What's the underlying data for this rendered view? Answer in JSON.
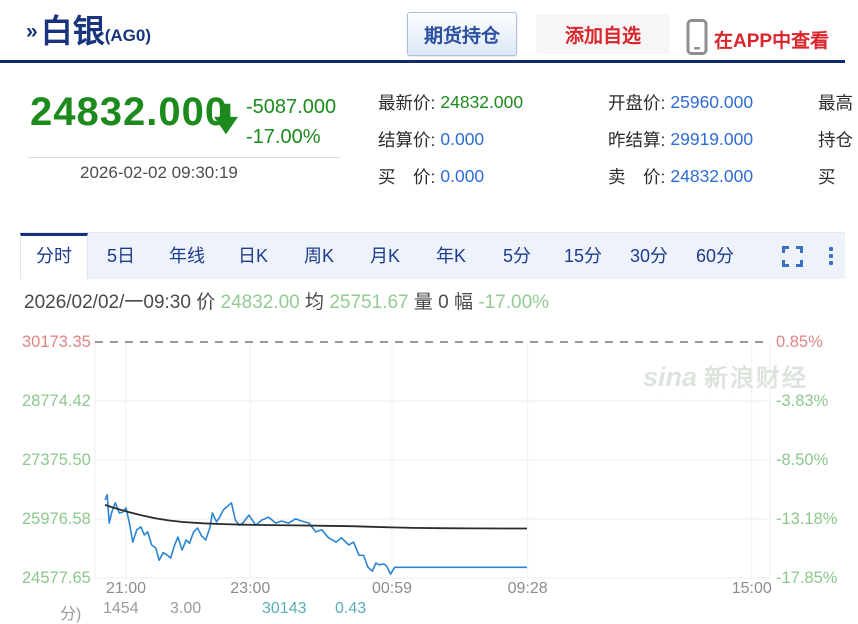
{
  "header": {
    "title": "白银",
    "symbol": "(AG0)",
    "positions_button": "期货持仓",
    "add_watchlist": "添加自选",
    "view_in_app": "在APP中查看"
  },
  "quote": {
    "price": "24832.000",
    "change": "-5087.000",
    "change_pct": "-17.00%",
    "timestamp": "2026-02-02 09:30:19",
    "columns": [
      [
        {
          "label": "最新价:",
          "value": "24832.000",
          "color": "green"
        },
        {
          "label": "结算价:",
          "value": "0.000",
          "color": "blue"
        },
        {
          "label": "买　价:",
          "value": "0.000",
          "color": "blue"
        }
      ],
      [
        {
          "label": "开盘价:",
          "value": "25960.000",
          "color": "blue"
        },
        {
          "label": "昨结算:",
          "value": "29919.000",
          "color": "blue"
        },
        {
          "label": "卖　价:",
          "value": "24832.000",
          "color": "blue"
        }
      ],
      [
        {
          "label": "最高",
          "value": "",
          "color": "blue"
        },
        {
          "label": "持仓",
          "value": "",
          "color": "blue"
        },
        {
          "label": "买",
          "value": "",
          "color": "blue"
        }
      ]
    ]
  },
  "tabs": {
    "items": [
      "分时",
      "5日",
      "年线",
      "日K",
      "周K",
      "月K",
      "年K",
      "5分",
      "15分",
      "30分",
      "60分"
    ],
    "active_index": 0
  },
  "info_line": {
    "datetime": "2026/02/02/一09:30",
    "price_label": "价",
    "price": "24832.00",
    "avg_label": "均",
    "avg": "25751.67",
    "vol_label": "量",
    "vol": "0",
    "range_label": "幅",
    "range": "-17.00%"
  },
  "watermark": {
    "brand": "sina",
    "name": "新浪财经"
  },
  "theme": {
    "navy": "#17347d",
    "down_green": "#1c8a1c",
    "link_blue": "#2e6cd6",
    "alert_red": "#d9262c",
    "chart_line_blue": "#2a85d2",
    "chart_avg_black": "#2b2b2b",
    "axis_green": "#8cc88c",
    "axis_red": "#e08484"
  },
  "chart_data": {
    "type": "line",
    "ylim": [
      24577.65,
      30173.35
    ],
    "grid": true,
    "last_price": 24832.0,
    "average_price": 25751.67,
    "change_pct": "-17.00%",
    "y_ticks": [
      {
        "value": 30173.35,
        "label": "30173.35",
        "pct_label": "0.85%",
        "tone": "up",
        "dashed": true
      },
      {
        "value": 28774.42,
        "label": "28774.42",
        "pct_label": "-3.83%",
        "tone": "down",
        "dashed": false
      },
      {
        "value": 27375.5,
        "label": "27375.50",
        "pct_label": "-8.50%",
        "tone": "down",
        "dashed": false
      },
      {
        "value": 25976.58,
        "label": "25976.58",
        "pct_label": "-13.18%",
        "tone": "down",
        "dashed": false
      },
      {
        "value": 24577.65,
        "label": "24577.65",
        "pct_label": "-17.85%",
        "tone": "down",
        "dashed": false
      }
    ],
    "x_ticks": [
      {
        "label": "21:00",
        "pos": 0.046
      },
      {
        "label": "23:00",
        "pos": 0.23
      },
      {
        "label": "00:59",
        "pos": 0.44
      },
      {
        "label": "09:28",
        "pos": 0.641
      },
      {
        "label": "15:00",
        "pos": 0.973
      }
    ],
    "series": [
      {
        "name": "price",
        "color": "#2a85d2",
        "width": 1.6,
        "points": [
          [
            0.015,
            26430
          ],
          [
            0.018,
            26550
          ],
          [
            0.021,
            25880
          ],
          [
            0.025,
            26150
          ],
          [
            0.03,
            26360
          ],
          [
            0.036,
            26120
          ],
          [
            0.041,
            26140
          ],
          [
            0.046,
            26240
          ],
          [
            0.051,
            25880
          ],
          [
            0.056,
            25430
          ],
          [
            0.062,
            25720
          ],
          [
            0.068,
            25790
          ],
          [
            0.073,
            25600
          ],
          [
            0.078,
            25670
          ],
          [
            0.084,
            25360
          ],
          [
            0.09,
            25290
          ],
          [
            0.095,
            25000
          ],
          [
            0.101,
            25180
          ],
          [
            0.107,
            25120
          ],
          [
            0.112,
            25050
          ],
          [
            0.118,
            25360
          ],
          [
            0.123,
            25550
          ],
          [
            0.129,
            25240
          ],
          [
            0.135,
            25480
          ],
          [
            0.14,
            25400
          ],
          [
            0.146,
            25670
          ],
          [
            0.152,
            25760
          ],
          [
            0.158,
            25570
          ],
          [
            0.164,
            25480
          ],
          [
            0.17,
            25760
          ],
          [
            0.174,
            26120
          ],
          [
            0.18,
            25910
          ],
          [
            0.184,
            26000
          ],
          [
            0.19,
            26190
          ],
          [
            0.202,
            26360
          ],
          [
            0.208,
            25950
          ],
          [
            0.214,
            25830
          ],
          [
            0.219,
            25880
          ],
          [
            0.228,
            26070
          ],
          [
            0.238,
            25830
          ],
          [
            0.247,
            25950
          ],
          [
            0.257,
            26020
          ],
          [
            0.268,
            25880
          ],
          [
            0.276,
            25930
          ],
          [
            0.287,
            25880
          ],
          [
            0.297,
            25980
          ],
          [
            0.306,
            25930
          ],
          [
            0.317,
            25880
          ],
          [
            0.327,
            25670
          ],
          [
            0.336,
            25720
          ],
          [
            0.346,
            25530
          ],
          [
            0.357,
            25430
          ],
          [
            0.365,
            25530
          ],
          [
            0.376,
            25360
          ],
          [
            0.383,
            25430
          ],
          [
            0.391,
            25120
          ],
          [
            0.398,
            25110
          ],
          [
            0.404,
            24840
          ],
          [
            0.411,
            24740
          ],
          [
            0.416,
            24930
          ],
          [
            0.421,
            24890
          ],
          [
            0.428,
            24910
          ],
          [
            0.432,
            24860
          ],
          [
            0.438,
            24670
          ],
          [
            0.444,
            24832
          ],
          [
            0.64,
            24832
          ]
        ]
      },
      {
        "name": "average",
        "color": "#2b2b2b",
        "width": 1.8,
        "points": [
          [
            0.015,
            26310
          ],
          [
            0.03,
            26230
          ],
          [
            0.05,
            26140
          ],
          [
            0.07,
            26060
          ],
          [
            0.09,
            25990
          ],
          [
            0.11,
            25940
          ],
          [
            0.13,
            25905
          ],
          [
            0.16,
            25875
          ],
          [
            0.19,
            25855
          ],
          [
            0.22,
            25842
          ],
          [
            0.26,
            25832
          ],
          [
            0.3,
            25824
          ],
          [
            0.34,
            25816
          ],
          [
            0.38,
            25806
          ],
          [
            0.41,
            25792
          ],
          [
            0.44,
            25778
          ],
          [
            0.47,
            25766
          ],
          [
            0.51,
            25758
          ],
          [
            0.56,
            25753
          ],
          [
            0.64,
            25751.67
          ]
        ]
      }
    ]
  },
  "bottom_clipped_row": {
    "fragments": [
      {
        "text": "分)",
        "x": 60,
        "color": "#9a9a9a"
      },
      {
        "text": "1454",
        "x": 103,
        "color": "#9a9a9a"
      },
      {
        "text": "3.00",
        "x": 170,
        "color": "#9a9a9a"
      },
      {
        "text": "30143",
        "x": 262,
        "color": "#57aeb4"
      },
      {
        "text": "0.43",
        "x": 335,
        "color": "#57aeb4"
      }
    ]
  }
}
